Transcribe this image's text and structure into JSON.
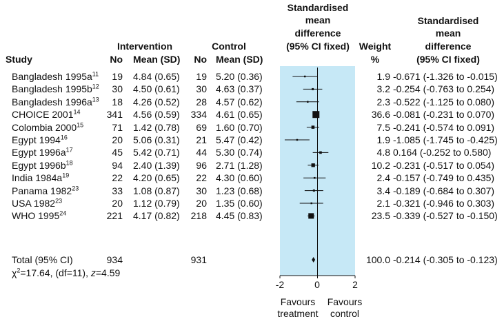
{
  "header": {
    "study": "Study",
    "intervention": "Intervention",
    "control": "Control",
    "no": "No",
    "mean_sd": "Mean (SD)",
    "smd_line1": "Standardised",
    "smd_line2": "mean",
    "smd_line3": "difference",
    "smd_line4": "(95% CI fixed)",
    "weight_line1": "Weight",
    "weight_line2": "%",
    "smd2_line1": "Standardised",
    "smd2_line2": "mean",
    "smd2_line3": "difference",
    "smd2_line4": "(95% CI fixed)"
  },
  "rows": [
    {
      "study": "Bangladesh 1995a",
      "ref": "11",
      "int_no": "19",
      "int_mean": "4.84 (0.65)",
      "ctl_no": "19",
      "ctl_mean": "5.20 (0.36)",
      "weight": "1.9",
      "smd_text": "-0.671 (-1.326 to -0.015)",
      "smd": -0.671,
      "lo": -1.326,
      "hi": -0.015,
      "w": 1.9
    },
    {
      "study": "Bangladesh 1995b",
      "ref": "12",
      "int_no": "30",
      "int_mean": "4.50 (0.61)",
      "ctl_no": "30",
      "ctl_mean": "4.63 (0.37)",
      "weight": "3.2",
      "smd_text": "-0.254 (-0.763 to 0.254)",
      "smd": -0.254,
      "lo": -0.763,
      "hi": 0.254,
      "w": 3.2
    },
    {
      "study": "Bangladesh 1996a",
      "ref": "13",
      "int_no": "18",
      "int_mean": "4.26 (0.52)",
      "ctl_no": "28",
      "ctl_mean": "4.57 (0.62)",
      "weight": "2.3",
      "smd_text": "-0.522 (-1.125 to 0.080)",
      "smd": -0.522,
      "lo": -1.125,
      "hi": 0.08,
      "w": 2.3
    },
    {
      "study": "CHOICE 2001",
      "ref": "14",
      "int_no": "341",
      "int_mean": "4.56 (0.59)",
      "ctl_no": "334",
      "ctl_mean": "4.61 (0.65)",
      "weight": "36.6",
      "smd_text": "-0.081 (-0.231 to 0.070)",
      "smd": -0.081,
      "lo": -0.231,
      "hi": 0.07,
      "w": 36.6
    },
    {
      "study": "Colombia 2000",
      "ref": "15",
      "int_no": "71",
      "int_mean": "1.42 (0.78)",
      "ctl_no": "69",
      "ctl_mean": "1.60 (0.70)",
      "weight": "7.5",
      "smd_text": "-0.241 (-0.574 to 0.091)",
      "smd": -0.241,
      "lo": -0.574,
      "hi": 0.091,
      "w": 7.5
    },
    {
      "study": "Egypt 1994",
      "ref": "16",
      "int_no": "20",
      "int_mean": "5.06 (0.31)",
      "ctl_no": "21",
      "ctl_mean": "5.47 (0.42)",
      "weight": "1.9",
      "smd_text": "-1.085 (-1.745 to -0.425)",
      "smd": -1.085,
      "lo": -1.745,
      "hi": -0.425,
      "w": 1.9
    },
    {
      "study": "Egypt 1996a",
      "ref": "17",
      "int_no": "45",
      "int_mean": "5.42 (0.71)",
      "ctl_no": "44",
      "ctl_mean": "5.30 (0.74)",
      "weight": "4.8",
      "smd_text": "0.164 (-0.252 to 0.580)",
      "smd": 0.164,
      "lo": -0.252,
      "hi": 0.58,
      "w": 4.8
    },
    {
      "study": "Egypt 1996b",
      "ref": "18",
      "int_no": "94",
      "int_mean": "2.40 (1.39)",
      "ctl_no": "96",
      "ctl_mean": "2.71 (1.28)",
      "weight": "10.2",
      "smd_text": "-0.231 (-0.517 to 0.054)",
      "smd": -0.231,
      "lo": -0.517,
      "hi": 0.054,
      "w": 10.2
    },
    {
      "study": "India 1984a",
      "ref": "19",
      "int_no": "22",
      "int_mean": "4.20 (0.65)",
      "ctl_no": "22",
      "ctl_mean": "4.30 (0.60)",
      "weight": "2.4",
      "smd_text": "-0.157 (-0.749 to 0.435)",
      "smd": -0.157,
      "lo": -0.749,
      "hi": 0.435,
      "w": 2.4
    },
    {
      "study": "Panama 1982",
      "ref": "23",
      "int_no": "33",
      "int_mean": "1.08 (0.87)",
      "ctl_no": "30",
      "ctl_mean": "1.23 (0.68)",
      "weight": "3.4",
      "smd_text": "-0.189 (-0.684 to 0.307)",
      "smd": -0.189,
      "lo": -0.684,
      "hi": 0.307,
      "w": 3.4
    },
    {
      "study": "USA 1982",
      "ref": "23",
      "int_no": "20",
      "int_mean": "1.12 (0.79)",
      "ctl_no": "20",
      "ctl_mean": "1.35 (0.60)",
      "weight": "2.1",
      "smd_text": "-0.321 (-0.946 to 0.303)",
      "smd": -0.321,
      "lo": -0.946,
      "hi": 0.303,
      "w": 2.1
    },
    {
      "study": "WHO 1995",
      "ref": "24",
      "int_no": "221",
      "int_mean": "4.17 (0.82)",
      "ctl_no": "218",
      "ctl_mean": "4.45 (0.83)",
      "weight": "23.5",
      "smd_text": "-0.339 (-0.527 to -0.150)",
      "smd": -0.339,
      "lo": -0.527,
      "hi": -0.15,
      "w": 23.5
    }
  ],
  "total": {
    "label": "Total (95% CI)",
    "int_no": "934",
    "ctl_no": "931",
    "weight": "100.0",
    "smd_text": "-0.214 (-0.305 to -0.123)",
    "smd": -0.214,
    "lo": -0.305,
    "hi": -0.123
  },
  "heterogeneity": {
    "chi_symbol": "χ",
    "chi_exp": "2",
    "chi_value": "=17.64, (df=11), ",
    "z_symbol": "z",
    "z_value": "=4.59"
  },
  "axis": {
    "ticks": [
      -2,
      0,
      2
    ],
    "tick_labels": [
      "-2",
      "0",
      "2"
    ],
    "left_label_1": "Favours",
    "left_label_2": "treatment",
    "right_label_1": "Favours",
    "right_label_2": "control"
  },
  "colors": {
    "panel": "#c6e8f6",
    "marks": "#111111"
  },
  "chart_data": {
    "type": "forest",
    "xlim": [
      -2,
      2
    ],
    "x_ticks": [
      -2,
      0,
      2
    ],
    "null_line": 0,
    "categories": [
      "Bangladesh 1995a",
      "Bangladesh 1995b",
      "Bangladesh 1996a",
      "CHOICE 2001",
      "Colombia 2000",
      "Egypt 1994",
      "Egypt 1996a",
      "Egypt 1996b",
      "India 1984a",
      "Panama 1982",
      "USA 1982",
      "WHO 1995"
    ],
    "series": [
      {
        "values": [
          -0.671,
          -0.254,
          -0.522,
          -0.081,
          -0.241,
          -1.085,
          0.164,
          -0.231,
          -0.157,
          -0.189,
          -0.321,
          -0.339
        ]
      }
    ],
    "ci_low": [
      -1.326,
      -0.763,
      -1.125,
      -0.231,
      -0.574,
      -1.745,
      -0.252,
      -0.517,
      -0.749,
      -0.684,
      -0.946,
      -0.527
    ],
    "ci_high": [
      -0.015,
      0.254,
      0.08,
      0.07,
      0.091,
      -0.425,
      0.58,
      0.054,
      0.435,
      0.307,
      0.303,
      -0.15
    ],
    "weights": [
      1.9,
      3.2,
      2.3,
      36.6,
      7.5,
      1.9,
      4.8,
      10.2,
      2.4,
      3.4,
      2.1,
      23.5
    ],
    "pooled": {
      "value": -0.214,
      "ci_low": -0.305,
      "ci_high": -0.123
    }
  }
}
